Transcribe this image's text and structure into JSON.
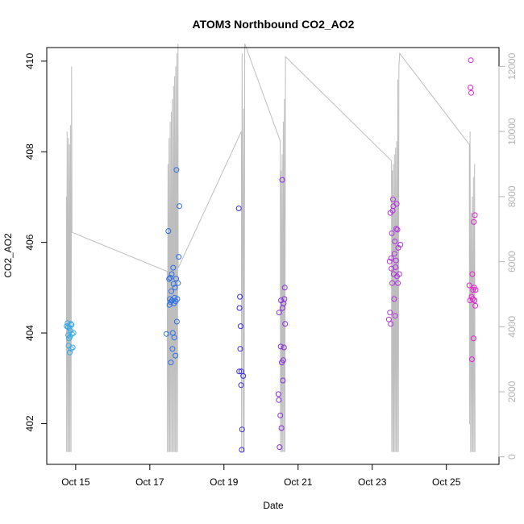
{
  "chart_data": {
    "type": "scatter",
    "title": "ATOM3 Northbound CO2_AO2",
    "xlabel": "Date",
    "ylabel": "CO2_AO2",
    "x_ticks": [
      {
        "day": 14.98,
        "label": "Oct 15"
      },
      {
        "day": 16.98,
        "label": "Oct 17"
      },
      {
        "day": 18.98,
        "label": "Oct 19"
      },
      {
        "day": 20.98,
        "label": "Oct 21"
      },
      {
        "day": 22.98,
        "label": "Oct 23"
      },
      {
        "day": 24.98,
        "label": "Oct 25"
      }
    ],
    "xlim": [
      14.2,
      26.4
    ],
    "ylim": [
      401.1,
      410.3
    ],
    "y_ticks": [
      402,
      404,
      406,
      408,
      410
    ],
    "y2lim": [
      -230,
      12580
    ],
    "y2_ticks": [
      0,
      2000,
      4000,
      6000,
      8000,
      10000,
      12000
    ],
    "colors": {
      "altitude_line": "#bebebe",
      "flight_1": "#33a8e8",
      "flight_2": "#2b6ee6",
      "flight_3": "#3c2ae0",
      "flight_4": "#8a2be2",
      "flight_5": "#b22ee0",
      "flight_6": "#e61ed0"
    },
    "series": [
      {
        "color_key": "flight_1",
        "points": [
          [
            14.74,
            404.15
          ],
          [
            14.76,
            404.22
          ],
          [
            14.77,
            404.13
          ],
          [
            14.78,
            403.95
          ],
          [
            14.79,
            403.72
          ],
          [
            14.8,
            403.88
          ],
          [
            14.81,
            404.11
          ],
          [
            14.82,
            403.57
          ],
          [
            14.83,
            403.92
          ],
          [
            14.84,
            404.05
          ],
          [
            14.85,
            404.2
          ],
          [
            14.86,
            403.65
          ],
          [
            14.87,
            404.18
          ],
          [
            14.88,
            403.98
          ],
          [
            14.9,
            403.68
          ],
          [
            14.92,
            404.0
          ]
        ]
      },
      {
        "color_key": "flight_2",
        "points": [
          [
            17.43,
            403.98
          ],
          [
            17.48,
            406.25
          ],
          [
            17.5,
            405.19
          ],
          [
            17.51,
            404.62
          ],
          [
            17.52,
            404.75
          ],
          [
            17.53,
            405.22
          ],
          [
            17.54,
            404.68
          ],
          [
            17.55,
            403.35
          ],
          [
            17.56,
            404.92
          ],
          [
            17.57,
            405.3
          ],
          [
            17.58,
            404.72
          ],
          [
            17.59,
            403.65
          ],
          [
            17.6,
            404.0
          ],
          [
            17.61,
            405.44
          ],
          [
            17.62,
            405.08
          ],
          [
            17.63,
            404.65
          ],
          [
            17.64,
            403.9
          ],
          [
            17.65,
            404.78
          ],
          [
            17.66,
            405.0
          ],
          [
            17.67,
            403.5
          ],
          [
            17.68,
            404.7
          ],
          [
            17.69,
            405.2
          ],
          [
            17.7,
            407.6
          ],
          [
            17.71,
            404.25
          ],
          [
            17.72,
            404.75
          ],
          [
            17.74,
            405.1
          ],
          [
            17.76,
            405.68
          ],
          [
            17.78,
            406.8
          ]
        ]
      },
      {
        "color_key": "flight_3",
        "points": [
          [
            19.38,
            406.75
          ],
          [
            19.39,
            403.15
          ],
          [
            19.4,
            404.55
          ],
          [
            19.41,
            404.8
          ],
          [
            19.42,
            403.65
          ],
          [
            19.43,
            404.15
          ],
          [
            19.44,
            402.85
          ],
          [
            19.45,
            403.15
          ],
          [
            19.46,
            401.42
          ],
          [
            19.47,
            401.87
          ],
          [
            19.5,
            403.05
          ]
        ]
      },
      {
        "color_key": "flight_4",
        "points": [
          [
            20.45,
            402.65
          ],
          [
            20.46,
            402.52
          ],
          [
            20.47,
            404.45
          ],
          [
            20.48,
            401.48
          ],
          [
            20.5,
            402.18
          ],
          [
            20.51,
            403.7
          ],
          [
            20.52,
            404.72
          ],
          [
            20.53,
            401.9
          ],
          [
            20.54,
            403.35
          ],
          [
            20.55,
            407.38
          ],
          [
            20.56,
            404.55
          ],
          [
            20.57,
            402.95
          ],
          [
            20.58,
            403.4
          ],
          [
            20.59,
            404.65
          ],
          [
            20.6,
            403.68
          ],
          [
            20.61,
            404.75
          ],
          [
            20.62,
            405.0
          ],
          [
            20.63,
            404.2
          ]
        ]
      },
      {
        "color_key": "flight_5",
        "points": [
          [
            23.43,
            404.3
          ],
          [
            23.45,
            405.58
          ],
          [
            23.46,
            404.45
          ],
          [
            23.47,
            406.65
          ],
          [
            23.48,
            404.2
          ],
          [
            23.49,
            405.65
          ],
          [
            23.5,
            405.42
          ],
          [
            23.51,
            406.2
          ],
          [
            23.52,
            405.1
          ],
          [
            23.53,
            406.7
          ],
          [
            23.54,
            406.95
          ],
          [
            23.55,
            406.8
          ],
          [
            23.56,
            405.3
          ],
          [
            23.57,
            404.75
          ],
          [
            23.58,
            405.75
          ],
          [
            23.59,
            406.02
          ],
          [
            23.6,
            404.38
          ],
          [
            23.61,
            405.45
          ],
          [
            23.62,
            405.6
          ],
          [
            23.63,
            406.3
          ],
          [
            23.64,
            406.85
          ],
          [
            23.65,
            405.25
          ],
          [
            23.66,
            406.28
          ],
          [
            23.67,
            405.1
          ],
          [
            23.68,
            405.88
          ],
          [
            23.71,
            405.3
          ],
          [
            23.74,
            405.95
          ]
        ]
      },
      {
        "color_key": "flight_6",
        "points": [
          [
            25.6,
            405.05
          ],
          [
            25.62,
            404.72
          ],
          [
            25.63,
            409.42
          ],
          [
            25.64,
            410.02
          ],
          [
            25.65,
            409.3
          ],
          [
            25.66,
            404.8
          ],
          [
            25.67,
            403.42
          ],
          [
            25.68,
            405.3
          ],
          [
            25.69,
            404.75
          ],
          [
            25.7,
            404.95
          ],
          [
            25.71,
            403.88
          ],
          [
            25.72,
            406.45
          ],
          [
            25.73,
            405.0
          ],
          [
            25.74,
            404.72
          ],
          [
            25.75,
            406.6
          ],
          [
            25.76,
            404.6
          ],
          [
            25.77,
            404.95
          ]
        ]
      }
    ],
    "altitude": [
      [
        14.73,
        8000
      ],
      [
        14.735,
        150
      ],
      [
        14.75,
        10000
      ],
      [
        14.765,
        150
      ],
      [
        14.78,
        9800
      ],
      [
        14.795,
        150
      ],
      [
        14.81,
        9600
      ],
      [
        14.825,
        150
      ],
      [
        14.84,
        10200
      ],
      [
        14.855,
        150
      ],
      [
        14.87,
        12000
      ],
      [
        14.88,
        6900
      ],
      [
        17.45,
        5700
      ],
      [
        17.455,
        150
      ],
      [
        17.47,
        9000
      ],
      [
        17.485,
        150
      ],
      [
        17.5,
        9800
      ],
      [
        17.515,
        150
      ],
      [
        17.53,
        10300
      ],
      [
        17.545,
        150
      ],
      [
        17.56,
        10600
      ],
      [
        17.575,
        150
      ],
      [
        17.59,
        11000
      ],
      [
        17.605,
        150
      ],
      [
        17.62,
        11400
      ],
      [
        17.635,
        150
      ],
      [
        17.65,
        11700
      ],
      [
        17.665,
        150
      ],
      [
        17.68,
        12000
      ],
      [
        17.695,
        150
      ],
      [
        17.71,
        12400
      ],
      [
        17.725,
        150
      ],
      [
        17.74,
        12700
      ],
      [
        17.745,
        5800
      ],
      [
        19.45,
        10000
      ],
      [
        19.455,
        150
      ],
      [
        19.47,
        12400
      ],
      [
        19.48,
        8800
      ],
      [
        19.495,
        150
      ],
      [
        19.51,
        10700
      ],
      [
        19.525,
        150
      ],
      [
        19.54,
        12700
      ],
      [
        20.5,
        9700
      ],
      [
        20.505,
        150
      ],
      [
        20.52,
        8800
      ],
      [
        20.535,
        150
      ],
      [
        20.55,
        9300
      ],
      [
        20.565,
        150
      ],
      [
        20.58,
        10300
      ],
      [
        20.595,
        150
      ],
      [
        20.61,
        11000
      ],
      [
        20.625,
        150
      ],
      [
        20.64,
        12300
      ],
      [
        23.5,
        9100
      ],
      [
        23.505,
        150
      ],
      [
        23.52,
        8800
      ],
      [
        23.535,
        150
      ],
      [
        23.55,
        9000
      ],
      [
        23.565,
        150
      ],
      [
        23.58,
        9300
      ],
      [
        23.595,
        150
      ],
      [
        23.61,
        9500
      ],
      [
        23.625,
        150
      ],
      [
        23.64,
        9700
      ],
      [
        23.655,
        150
      ],
      [
        23.67,
        11600
      ],
      [
        23.685,
        150
      ],
      [
        23.7,
        12000
      ],
      [
        23.72,
        12400
      ],
      [
        25.6,
        9600
      ],
      [
        25.605,
        1000
      ],
      [
        25.62,
        10000
      ],
      [
        25.635,
        150
      ],
      [
        25.65,
        7500
      ],
      [
        25.665,
        150
      ],
      [
        25.68,
        8000
      ],
      [
        25.695,
        150
      ],
      [
        25.71,
        8600
      ],
      [
        25.725,
        150
      ],
      [
        25.74,
        9000
      ],
      [
        25.755,
        150
      ]
    ]
  }
}
